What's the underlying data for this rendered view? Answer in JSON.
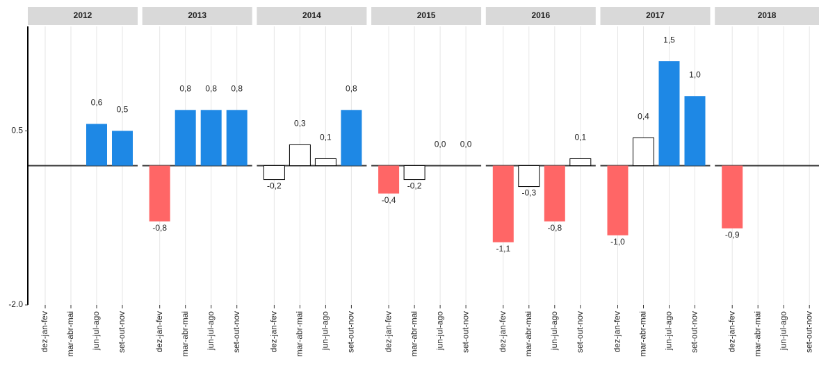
{
  "chart_data": {
    "type": "bar",
    "categories": [
      "dez-jan-fev",
      "mar-abr-mai",
      "jun-jul-ago",
      "set-out-nov"
    ],
    "ylim": [
      -2.0,
      2.0
    ],
    "yticks": [
      {
        "value": 0.5,
        "label": "0.5"
      },
      {
        "value": -2.0,
        "label": "-2.0"
      }
    ],
    "grid": true,
    "facets": [
      {
        "title": "2012",
        "values": [
          null,
          null,
          0.6,
          0.5
        ],
        "value_labels": [
          null,
          null,
          "0,6",
          "0,5"
        ],
        "colors": [
          null,
          null,
          "#1e88e5",
          "#1e88e5"
        ]
      },
      {
        "title": "2013",
        "values": [
          -0.8,
          0.8,
          0.8,
          0.8
        ],
        "value_labels": [
          "-0,8",
          "0,8",
          "0,8",
          "0,8"
        ],
        "colors": [
          "#ff6666",
          "#1e88e5",
          "#1e88e5",
          "#1e88e5"
        ]
      },
      {
        "title": "2014",
        "values": [
          -0.2,
          0.3,
          0.1,
          0.8
        ],
        "value_labels": [
          "-0,2",
          "0,3",
          "0,1",
          "0,8"
        ],
        "colors": [
          "#ffffff",
          "#ffffff",
          "#ffffff",
          "#1e88e5"
        ]
      },
      {
        "title": "2015",
        "values": [
          -0.4,
          -0.2,
          0.0,
          0.0
        ],
        "value_labels": [
          "-0,4",
          "-0,2",
          "0,0",
          "0,0"
        ],
        "colors": [
          "#ff6666",
          "#ffffff",
          "#ffffff",
          "#ffffff"
        ]
      },
      {
        "title": "2016",
        "values": [
          -1.1,
          -0.3,
          -0.8,
          0.1
        ],
        "value_labels": [
          "-1,1",
          "-0,3",
          "-0,8",
          "0,1"
        ],
        "colors": [
          "#ff6666",
          "#ffffff",
          "#ff6666",
          "#ffffff"
        ]
      },
      {
        "title": "2017",
        "values": [
          -1.0,
          0.4,
          1.5,
          1.0
        ],
        "value_labels": [
          "-1,0",
          "0,4",
          "1,5",
          "1,0"
        ],
        "colors": [
          "#ff6666",
          "#ffffff",
          "#1e88e5",
          "#1e88e5"
        ]
      },
      {
        "title": "2018",
        "values": [
          -0.9,
          null,
          null,
          null
        ],
        "value_labels": [
          "-0,9",
          null,
          null,
          null
        ],
        "colors": [
          "#ff6666",
          null,
          null,
          null
        ]
      }
    ]
  }
}
